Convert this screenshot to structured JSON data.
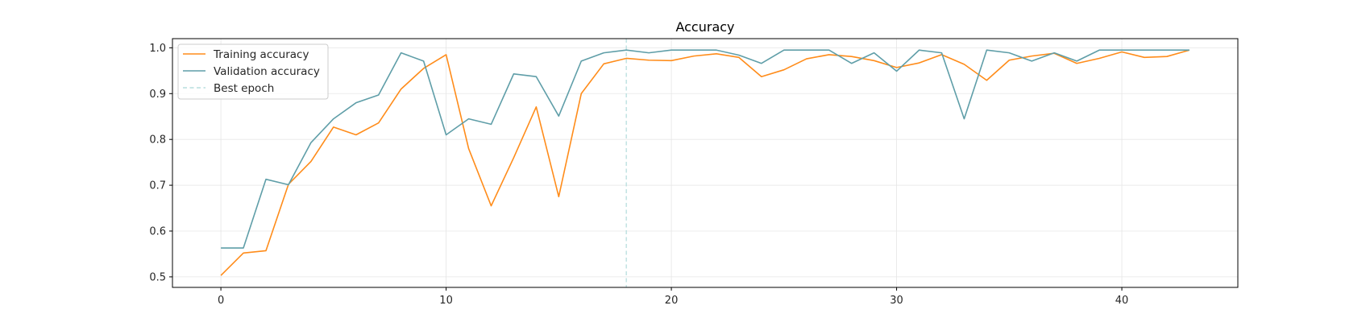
{
  "chart_data": {
    "type": "line",
    "title": "Accuracy",
    "xlabel": "",
    "ylabel": "",
    "xlim": [
      -2.15,
      45.15
    ],
    "ylim": [
      0.477,
      1.02
    ],
    "xticks": [
      0,
      10,
      20,
      30,
      40
    ],
    "yticks": [
      0.5,
      0.6,
      0.7,
      0.8,
      0.9,
      1.0
    ],
    "ytick_labels": [
      "0.5",
      "0.6",
      "0.7",
      "0.8",
      "0.9",
      "1.0"
    ],
    "grid": true,
    "legend_position": "top-left",
    "x": [
      0,
      1,
      2,
      3,
      4,
      5,
      6,
      7,
      8,
      9,
      10,
      11,
      12,
      13,
      14,
      15,
      16,
      17,
      18,
      19,
      20,
      21,
      22,
      23,
      24,
      25,
      26,
      27,
      28,
      29,
      30,
      31,
      32,
      33,
      34,
      35,
      36,
      37,
      38,
      39,
      40,
      41,
      42,
      43
    ],
    "series": [
      {
        "name": "Training accuracy",
        "color": "#ff8c1a",
        "style": "solid",
        "values": [
          0.503,
          0.552,
          0.557,
          0.702,
          0.752,
          0.827,
          0.81,
          0.836,
          0.91,
          0.955,
          0.985,
          0.78,
          0.655,
          0.76,
          0.871,
          0.675,
          0.9,
          0.965,
          0.977,
          0.973,
          0.972,
          0.982,
          0.987,
          0.979,
          0.937,
          0.952,
          0.976,
          0.985,
          0.981,
          0.972,
          0.957,
          0.967,
          0.985,
          0.964,
          0.929,
          0.973,
          0.982,
          0.988,
          0.966,
          0.977,
          0.991,
          0.979,
          0.981,
          0.995
        ]
      },
      {
        "name": "Validation accuracy",
        "color": "#5f9ea8",
        "style": "solid",
        "values": [
          0.563,
          0.563,
          0.713,
          0.701,
          0.793,
          0.845,
          0.88,
          0.897,
          0.989,
          0.971,
          0.81,
          0.845,
          0.833,
          0.943,
          0.937,
          0.851,
          0.971,
          0.989,
          0.995,
          0.989,
          0.995,
          0.995,
          0.995,
          0.984,
          0.966,
          0.995,
          0.995,
          0.995,
          0.966,
          0.989,
          0.949,
          0.995,
          0.989,
          0.845,
          0.995,
          0.989,
          0.971,
          0.989,
          0.971,
          0.995,
          0.995,
          0.995,
          0.995,
          0.995
        ]
      }
    ],
    "reference_lines": [
      {
        "name": "Best epoch",
        "axis": "x",
        "value": 18,
        "color": "#b7dede",
        "style": "dashed"
      }
    ]
  }
}
